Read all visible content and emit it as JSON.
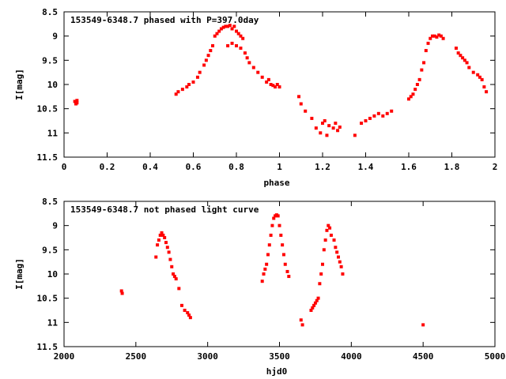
{
  "chart_data": [
    {
      "type": "scatter",
      "title": "153549-6348.7 phased with P=397.0day",
      "xlabel": "phase",
      "ylabel": "I[mag]",
      "xlim": [
        0,
        2
      ],
      "ylim": [
        11.5,
        8.5
      ],
      "y_inverted": true,
      "xticks": [
        0,
        0.2,
        0.4,
        0.6,
        0.8,
        1,
        1.2,
        1.4,
        1.6,
        1.8,
        2
      ],
      "xtick_labels": [
        "0",
        "0.2",
        "0.4",
        "0.6",
        "0.8",
        "1",
        "1.2",
        "1.4",
        "1.6",
        "1.8",
        "2"
      ],
      "yticks": [
        8.5,
        9,
        9.5,
        10,
        10.5,
        11,
        11.5
      ],
      "ytick_labels": [
        "8.5",
        "9",
        "9.5",
        "10",
        "10.5",
        "11",
        "11.5"
      ],
      "grid": false,
      "marker_color": "#ff0000",
      "series": [
        {
          "x": [
            0.05,
            0.055,
            0.06,
            0.06,
            0.52,
            0.53,
            0.55,
            0.57,
            0.58,
            0.6,
            0.62,
            0.63,
            0.65,
            0.66,
            0.67,
            0.68,
            0.69,
            0.7,
            0.71,
            0.72,
            0.73,
            0.74,
            0.75,
            0.76,
            0.77,
            0.78,
            0.79,
            0.8,
            0.81,
            0.82,
            0.83,
            0.76,
            0.78,
            0.8,
            0.82,
            0.84,
            0.85,
            0.86,
            0.88,
            0.9,
            0.92,
            0.94,
            0.95,
            0.96,
            0.97,
            0.98,
            0.99,
            1.0,
            1.09,
            1.1,
            1.12,
            1.15,
            1.17,
            1.19,
            1.2,
            1.21,
            1.22,
            1.23,
            1.25,
            1.26,
            1.27,
            1.28,
            1.35,
            1.38,
            1.4,
            1.42,
            1.44,
            1.46,
            1.48,
            1.5,
            1.52,
            1.6,
            1.61,
            1.62,
            1.63,
            1.64,
            1.65,
            1.66,
            1.67,
            1.68,
            1.69,
            1.7,
            1.71,
            1.72,
            1.73,
            1.74,
            1.75,
            1.76,
            1.82,
            1.83,
            1.84,
            1.85,
            1.86,
            1.87,
            1.88,
            1.9,
            1.92,
            1.93,
            1.94,
            1.95,
            1.96
          ],
          "y": [
            10.35,
            10.4,
            10.33,
            10.38,
            10.2,
            10.15,
            10.1,
            10.05,
            10.0,
            9.95,
            9.85,
            9.75,
            9.6,
            9.5,
            9.4,
            9.3,
            9.2,
            9.0,
            8.95,
            8.9,
            8.85,
            8.82,
            8.8,
            8.8,
            8.78,
            8.85,
            8.8,
            8.9,
            8.95,
            9.0,
            9.05,
            9.2,
            9.15,
            9.2,
            9.25,
            9.35,
            9.45,
            9.55,
            9.65,
            9.75,
            9.85,
            9.95,
            9.9,
            10.0,
            10.02,
            10.05,
            10.0,
            10.05,
            10.25,
            10.4,
            10.55,
            10.7,
            10.9,
            11.0,
            10.8,
            10.75,
            11.05,
            10.85,
            10.9,
            10.8,
            10.95,
            10.88,
            11.05,
            10.8,
            10.75,
            10.7,
            10.65,
            10.6,
            10.65,
            10.6,
            10.55,
            10.3,
            10.25,
            10.2,
            10.1,
            10.0,
            9.9,
            9.7,
            9.55,
            9.3,
            9.15,
            9.05,
            9.0,
            9.0,
            9.02,
            8.98,
            9.0,
            9.05,
            9.25,
            9.35,
            9.4,
            9.45,
            9.5,
            9.55,
            9.65,
            9.75,
            9.8,
            9.85,
            9.9,
            10.05,
            10.15
          ]
        }
      ]
    },
    {
      "type": "scatter",
      "title": "153549-6348.7 not phased light curve",
      "xlabel": "hjd0",
      "ylabel": "I[mag]",
      "xlim": [
        2000,
        5000
      ],
      "ylim": [
        11.5,
        8.5
      ],
      "y_inverted": true,
      "xticks": [
        2000,
        2500,
        3000,
        3500,
        4000,
        4500,
        5000
      ],
      "xtick_labels": [
        "2000",
        "2500",
        "3000",
        "3500",
        "4000",
        "4500",
        "5000"
      ],
      "yticks": [
        8.5,
        9,
        9.5,
        10,
        10.5,
        11,
        11.5
      ],
      "ytick_labels": [
        "8.5",
        "9",
        "9.5",
        "10",
        "10.5",
        "11",
        "11.5"
      ],
      "grid": false,
      "marker_color": "#ff0000",
      "series": [
        {
          "x": [
            2400,
            2405,
            2640,
            2650,
            2660,
            2670,
            2680,
            2690,
            2700,
            2710,
            2720,
            2730,
            2740,
            2750,
            2760,
            2770,
            2780,
            2800,
            2820,
            2840,
            2860,
            2870,
            2880,
            3380,
            3390,
            3400,
            3410,
            3420,
            3430,
            3440,
            3450,
            3460,
            3470,
            3480,
            3490,
            3500,
            3510,
            3520,
            3530,
            3540,
            3555,
            3565,
            3650,
            3660,
            3720,
            3730,
            3740,
            3750,
            3760,
            3770,
            3780,
            3790,
            3800,
            3810,
            3820,
            3830,
            3840,
            3850,
            3860,
            3880,
            3890,
            3900,
            3910,
            3920,
            3930,
            3940,
            4500
          ],
          "y": [
            10.35,
            10.4,
            9.65,
            9.4,
            9.3,
            9.2,
            9.15,
            9.2,
            9.25,
            9.35,
            9.45,
            9.55,
            9.7,
            9.85,
            10.0,
            10.05,
            10.1,
            10.3,
            10.65,
            10.75,
            10.8,
            10.85,
            10.9,
            10.15,
            10.0,
            9.9,
            9.8,
            9.6,
            9.4,
            9.2,
            9.0,
            8.85,
            8.8,
            8.78,
            8.8,
            9.0,
            9.2,
            9.4,
            9.6,
            9.8,
            9.95,
            10.05,
            10.95,
            11.05,
            10.75,
            10.7,
            10.65,
            10.6,
            10.55,
            10.5,
            10.2,
            10.0,
            9.8,
            9.5,
            9.3,
            9.1,
            9.0,
            9.05,
            9.2,
            9.3,
            9.45,
            9.55,
            9.65,
            9.75,
            9.85,
            10.0,
            11.05
          ]
        }
      ]
    }
  ]
}
